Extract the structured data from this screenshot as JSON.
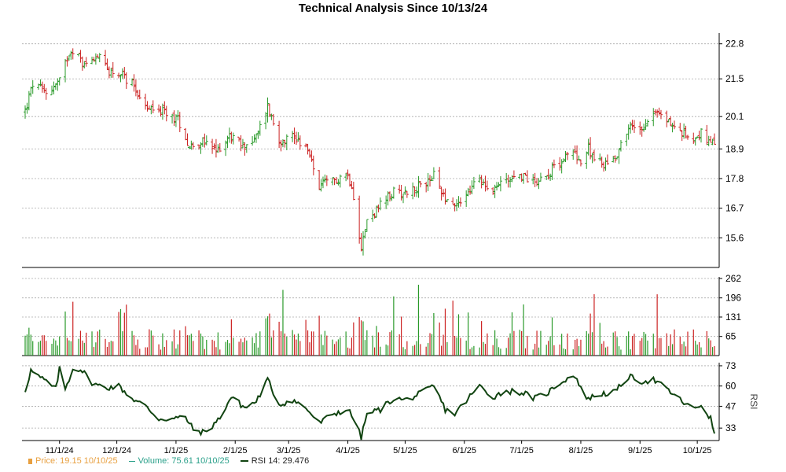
{
  "chart_data": {
    "type": "candlestick-ohlc",
    "title": "Technical Analysis Since 10/13/24",
    "x_tick_labels": [
      "11/1/24",
      "12/1/24",
      "1/1/25",
      "2/1/25",
      "3/1/25",
      "4/1/25",
      "5/1/25",
      "6/1/25",
      "7/1/25",
      "8/1/25",
      "9/1/25",
      "10/1/25"
    ],
    "price_panel": {
      "y_ticks": [
        22.8,
        21.5,
        20.1,
        18.9,
        17.8,
        16.7,
        15.6
      ],
      "ylim": [
        14.5,
        23.2
      ],
      "anchors": [
        [
          "10/14/24",
          20.3
        ],
        [
          "10/18/24",
          21.3
        ],
        [
          "10/25/24",
          21.0
        ],
        [
          "11/1/24",
          21.4
        ],
        [
          "11/6/24",
          22.5
        ],
        [
          "11/8/24",
          22.6
        ],
        [
          "11/14/24",
          22.0
        ],
        [
          "11/20/24",
          22.4
        ],
        [
          "11/27/24",
          21.8
        ],
        [
          "12/2/24",
          21.7
        ],
        [
          "12/10/24",
          21.3
        ],
        [
          "12/16/24",
          20.4
        ],
        [
          "12/24/24",
          20.3
        ],
        [
          "1/2/25",
          20.0
        ],
        [
          "1/8/25",
          19.0
        ],
        [
          "1/14/25",
          19.2
        ],
        [
          "1/22/25",
          18.8
        ],
        [
          "1/29/25",
          19.4
        ],
        [
          "2/5/25",
          19.0
        ],
        [
          "2/12/25",
          19.3
        ],
        [
          "2/18/25",
          20.5
        ],
        [
          "2/24/25",
          19.2
        ],
        [
          "3/3/25",
          19.4
        ],
        [
          "3/10/25",
          19.0
        ],
        [
          "3/17/25",
          17.5
        ],
        [
          "3/24/25",
          17.7
        ],
        [
          "3/31/25",
          18.0
        ],
        [
          "4/3/25",
          17.6
        ],
        [
          "4/8/25",
          15.3
        ],
        [
          "4/11/25",
          16.2
        ],
        [
          "4/18/25",
          16.8
        ],
        [
          "4/25/25",
          17.3
        ],
        [
          "5/1/25",
          17.3
        ],
        [
          "5/9/25",
          17.5
        ],
        [
          "5/16/25",
          17.9
        ],
        [
          "5/22/25",
          17.1
        ],
        [
          "5/27/25",
          16.8
        ],
        [
          "6/2/25",
          17.2
        ],
        [
          "6/9/25",
          17.8
        ],
        [
          "6/16/25",
          17.4
        ],
        [
          "6/23/25",
          17.8
        ],
        [
          "7/1/25",
          17.9
        ],
        [
          "7/8/25",
          17.7
        ],
        [
          "7/15/25",
          18.0
        ],
        [
          "7/22/25",
          18.5
        ],
        [
          "7/29/25",
          18.8
        ],
        [
          "8/1/25",
          18.4
        ],
        [
          "8/5/25",
          18.9
        ],
        [
          "8/12/25",
          18.3
        ],
        [
          "8/19/25",
          18.6
        ],
        [
          "8/26/25",
          19.7
        ],
        [
          "9/2/25",
          19.7
        ],
        [
          "9/8/25",
          20.3
        ],
        [
          "9/15/25",
          20.0
        ],
        [
          "9/22/25",
          19.5
        ],
        [
          "9/29/25",
          19.3
        ],
        [
          "10/3/25",
          19.5
        ],
        [
          "10/8/25",
          19.0
        ],
        [
          "10/10/25",
          19.15
        ]
      ]
    },
    "volume_panel": {
      "y_ticks": [
        262,
        196,
        131,
        65
      ],
      "ylim": [
        0,
        262
      ]
    },
    "rsi_panel": {
      "y_ticks": [
        73,
        60,
        47,
        33
      ],
      "ylabel": "RSI",
      "ylim": [
        25,
        75
      ],
      "anchors": [
        [
          "10/14/24",
          57
        ],
        [
          "10/17/24",
          70
        ],
        [
          "10/21/24",
          66
        ],
        [
          "10/25/24",
          63
        ],
        [
          "10/30/24",
          58
        ],
        [
          "11/1/24",
          71
        ],
        [
          "11/4/24",
          58
        ],
        [
          "11/8/24",
          71
        ],
        [
          "11/12/24",
          71
        ],
        [
          "11/19/24",
          61
        ],
        [
          "11/26/24",
          59
        ],
        [
          "12/2/24",
          60
        ],
        [
          "12/9/24",
          52
        ],
        [
          "12/16/24",
          47
        ],
        [
          "12/23/24",
          39
        ],
        [
          "12/30/24",
          39
        ],
        [
          "1/6/25",
          40
        ],
        [
          "1/10/25",
          32
        ],
        [
          "1/16/25",
          30
        ],
        [
          "1/23/25",
          38
        ],
        [
          "1/30/25",
          53
        ],
        [
          "2/6/25",
          46
        ],
        [
          "2/12/25",
          50
        ],
        [
          "2/18/25",
          64
        ],
        [
          "2/24/25",
          48
        ],
        [
          "3/3/25",
          51
        ],
        [
          "3/10/25",
          46
        ],
        [
          "3/17/25",
          36
        ],
        [
          "3/24/25",
          42
        ],
        [
          "4/1/25",
          45
        ],
        [
          "4/4/25",
          39
        ],
        [
          "4/8/25",
          27
        ],
        [
          "4/11/25",
          42
        ],
        [
          "4/18/25",
          45
        ],
        [
          "4/25/25",
          52
        ],
        [
          "5/1/25",
          51
        ],
        [
          "5/9/25",
          55
        ],
        [
          "5/16/25",
          60
        ],
        [
          "5/22/25",
          45
        ],
        [
          "5/27/25",
          42
        ],
        [
          "6/3/25",
          52
        ],
        [
          "6/9/25",
          60
        ],
        [
          "6/16/25",
          53
        ],
        [
          "6/23/25",
          57
        ],
        [
          "7/1/25",
          56
        ],
        [
          "7/8/25",
          52
        ],
        [
          "7/15/25",
          56
        ],
        [
          "7/22/25",
          63
        ],
        [
          "7/29/25",
          67
        ],
        [
          "8/1/25",
          58
        ],
        [
          "8/5/25",
          52
        ],
        [
          "8/12/25",
          55
        ],
        [
          "8/19/25",
          56
        ],
        [
          "8/26/25",
          66
        ],
        [
          "9/2/25",
          63
        ],
        [
          "9/8/25",
          64
        ],
        [
          "9/15/25",
          58
        ],
        [
          "9/22/25",
          51
        ],
        [
          "9/29/25",
          45
        ],
        [
          "10/3/25",
          48
        ],
        [
          "10/8/25",
          39
        ],
        [
          "10/10/25",
          29.476
        ]
      ]
    },
    "colors": {
      "up": "#2a9a2a",
      "down": "#cc2222",
      "rsi": "#114411",
      "grid": "#aaaaaa",
      "price_legend": "#e8a040",
      "volume_legend": "#2aa08a"
    }
  },
  "legend": {
    "price": "Price: 19.15  10/10/25",
    "volume": "Volume: 75.61  10/10/25",
    "rsi": "RSI 14: 29.476"
  }
}
